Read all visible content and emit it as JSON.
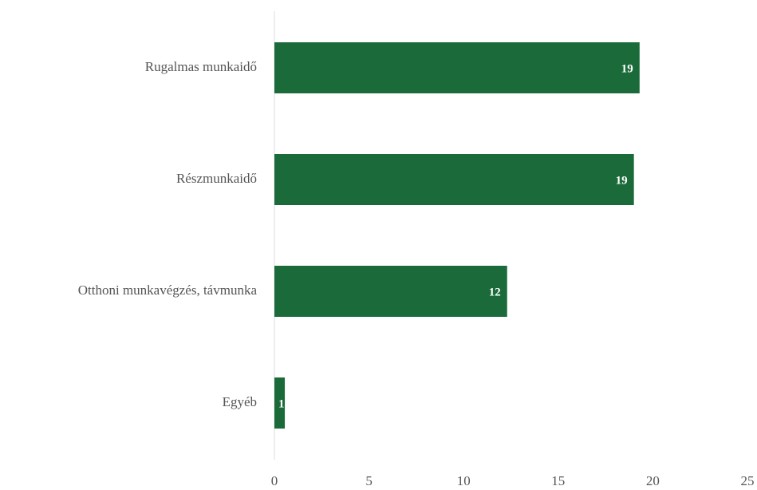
{
  "chart_data": {
    "type": "bar",
    "orientation": "horizontal",
    "categories": [
      "Rugalmas munkaidő",
      "Részmunkaidő",
      "Otthoni munkavégzés, távmunka",
      "Egyéb"
    ],
    "values": [
      19.3,
      19,
      12.3,
      0.55
    ],
    "value_labels": [
      "19",
      "19",
      "12",
      "1"
    ],
    "color": "#1b6b3a",
    "xlim": [
      0,
      25
    ],
    "xticks": [
      0,
      5,
      10,
      15,
      20,
      25
    ],
    "grid": false
  }
}
